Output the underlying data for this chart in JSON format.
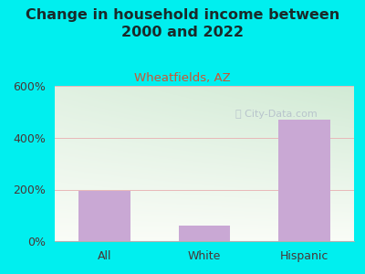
{
  "categories": [
    "All",
    "White",
    "Hispanic"
  ],
  "values": [
    195,
    60,
    470
  ],
  "bar_color": "#c9a8d4",
  "title_line1": "Change in household income between",
  "title_line2": "2000 and 2022",
  "subtitle": "Wheatfields, AZ",
  "title_fontsize": 11.5,
  "subtitle_fontsize": 9.5,
  "ylim": [
    0,
    600
  ],
  "yticks": [
    0,
    200,
    400,
    600
  ],
  "ytick_labels": [
    "0%",
    "200%",
    "400%",
    "600%"
  ],
  "background_outer": "#00EFEF",
  "grid_color": "#e8b8b8",
  "axis_label_color": "#4a3535",
  "title_color": "#1a2a2a",
  "subtitle_color": "#cc5533",
  "watermark_text": "City-Data.com",
  "watermark_color": "#b8c4cc",
  "tick_label_fontsize": 9,
  "plot_bg_top": "#d8ecd0",
  "plot_bg_bottom": "#f5f8f0"
}
